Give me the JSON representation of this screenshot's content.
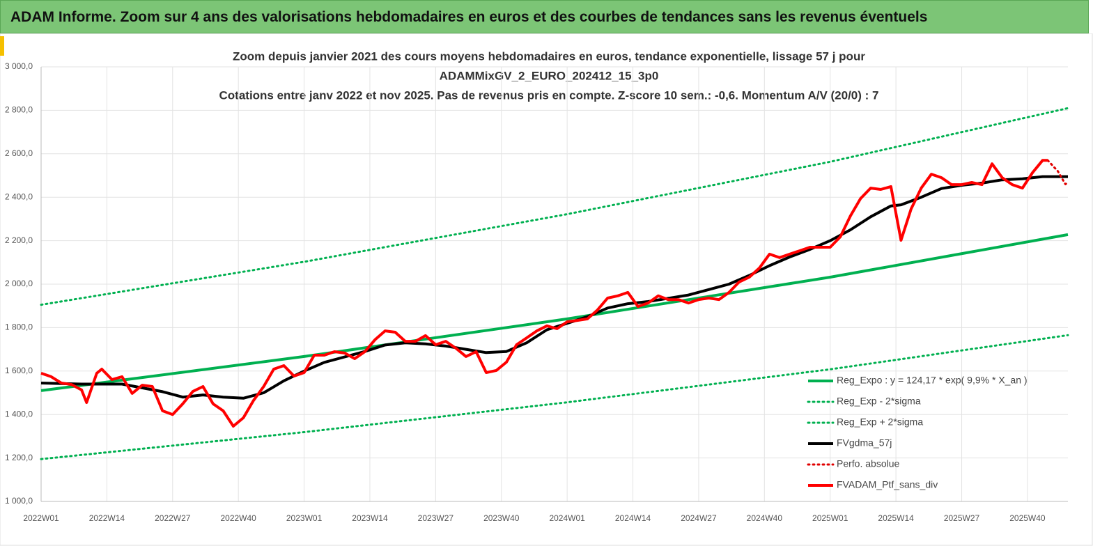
{
  "header": {
    "title": "ADAM Informe. Zoom sur 4 ans des valorisations hebdomadaires en euros et des courbes de tendances sans les revenus éventuels"
  },
  "chart_data": {
    "type": "line",
    "title": [
      "Zoom depuis janvier 2021 des cours moyens hebdomadaires  en euros, tendance exponentielle, lissage 57 j pour",
      "ADAMMixGV_2_EURO_202412_15_3p0",
      "Cotations  entre janv 2022 et nov 2025. Pas de revenus pris en compte. Z-score 10 sem.: -0,6. Momentum A/V (20/0) : 7"
    ],
    "xlim": [
      0,
      203
    ],
    "xticks": [
      {
        "value": 0,
        "label": "2022W01"
      },
      {
        "value": 13,
        "label": "2022W14"
      },
      {
        "value": 26,
        "label": "2022W27"
      },
      {
        "value": 39,
        "label": "2022W40"
      },
      {
        "value": 52,
        "label": "2023W01"
      },
      {
        "value": 65,
        "label": "2023W14"
      },
      {
        "value": 78,
        "label": "2023W27"
      },
      {
        "value": 91,
        "label": "2023W40"
      },
      {
        "value": 104,
        "label": "2024W01"
      },
      {
        "value": 117,
        "label": "2024W14"
      },
      {
        "value": 130,
        "label": "2024W27"
      },
      {
        "value": 143,
        "label": "2024W40"
      },
      {
        "value": 156,
        "label": "2025W01"
      },
      {
        "value": 169,
        "label": "2025W14"
      },
      {
        "value": 182,
        "label": "2025W27"
      },
      {
        "value": 195,
        "label": "2025W40"
      }
    ],
    "ylim": [
      1000,
      3000
    ],
    "yticks": [
      {
        "value": 1000,
        "label": "1 000,0"
      },
      {
        "value": 1200,
        "label": "1 200,0"
      },
      {
        "value": 1400,
        "label": "1 400,0"
      },
      {
        "value": 1600,
        "label": "1 600,0"
      },
      {
        "value": 1800,
        "label": "1 800,0"
      },
      {
        "value": 2000,
        "label": "2 000,0"
      },
      {
        "value": 2200,
        "label": "2 200,0"
      },
      {
        "value": 2400,
        "label": "2 400,0"
      },
      {
        "value": 2600,
        "label": "2 600,0"
      },
      {
        "value": 2800,
        "label": "2 800,0"
      },
      {
        "value": 3000,
        "label": "3 000,0"
      }
    ],
    "grid": true,
    "legend": "bottom-right",
    "series": [
      {
        "name": "Reg_Expo : y = 124,17 * exp( 9,9% *  X_an )",
        "color": "#00b050",
        "style": "solid",
        "width": 4,
        "x": [
          0,
          52,
          104,
          156,
          203
        ],
        "values": [
          1510,
          1667,
          1840,
          2032,
          2228
        ]
      },
      {
        "name": "Reg_Exp - 2*sigma",
        "color": "#00b050",
        "style": "dotted",
        "width": 3,
        "x": [
          0,
          52,
          104,
          156,
          203
        ],
        "values": [
          1195,
          1319,
          1456,
          1608,
          1765
        ]
      },
      {
        "name": "Reg_Exp + 2*sigma",
        "color": "#00b050",
        "style": "dotted",
        "width": 3,
        "x": [
          0,
          52,
          104,
          156,
          203
        ],
        "values": [
          1905,
          2103,
          2322,
          2563,
          2810
        ]
      },
      {
        "name": "FVgdma_57j",
        "color": "#000000",
        "style": "solid",
        "width": 4,
        "x": [
          0,
          8,
          16,
          24,
          28,
          32,
          36,
          40,
          44,
          48,
          52,
          56,
          60,
          64,
          68,
          72,
          76,
          80,
          84,
          88,
          92,
          96,
          100,
          104,
          108,
          112,
          116,
          120,
          124,
          128,
          132,
          136,
          140,
          144,
          148,
          152,
          156,
          160,
          164,
          168,
          170,
          174,
          178,
          182,
          186,
          190,
          194,
          198,
          203
        ],
        "values": [
          1545,
          1540,
          1540,
          1505,
          1480,
          1490,
          1480,
          1475,
          1500,
          1555,
          1600,
          1640,
          1665,
          1690,
          1720,
          1730,
          1725,
          1715,
          1700,
          1685,
          1690,
          1730,
          1790,
          1820,
          1850,
          1890,
          1910,
          1920,
          1935,
          1950,
          1975,
          2000,
          2040,
          2085,
          2125,
          2160,
          2200,
          2250,
          2310,
          2360,
          2365,
          2400,
          2440,
          2455,
          2465,
          2480,
          2485,
          2495,
          2495
        ]
      },
      {
        "name": "Perfo. absolue",
        "color": "#e00000",
        "style": "dotted",
        "width": 3,
        "x": [
          199,
          201,
          202.5,
          203
        ],
        "values": [
          2570,
          2520,
          2460,
          2468
        ]
      },
      {
        "name": "FVADAM_Ptf_sans_div",
        "color": "#ff0000",
        "style": "solid",
        "width": 4,
        "x": [
          0,
          2,
          4,
          6,
          8,
          9,
          11,
          12,
          14,
          16,
          18,
          20,
          22,
          24,
          26,
          28,
          30,
          32,
          34,
          36,
          38,
          40,
          42,
          44,
          46,
          48,
          50,
          52,
          54,
          56,
          58,
          60,
          62,
          64,
          66,
          68,
          70,
          72,
          74,
          76,
          78,
          80,
          82,
          84,
          86,
          88,
          90,
          92,
          94,
          96,
          98,
          100,
          102,
          104,
          106,
          108,
          110,
          112,
          114,
          116,
          118,
          120,
          122,
          124,
          126,
          128,
          130,
          132,
          134,
          136,
          138,
          140,
          142,
          144,
          146,
          148,
          150,
          152,
          154,
          156,
          158,
          160,
          162,
          164,
          166,
          168,
          170,
          172,
          174,
          176,
          178,
          180,
          182,
          184,
          186,
          188,
          190,
          192,
          194,
          196,
          198,
          199
        ],
        "values": [
          1590,
          1574,
          1545,
          1538,
          1513,
          1455,
          1590,
          1609,
          1561,
          1574,
          1497,
          1535,
          1529,
          1417,
          1400,
          1449,
          1506,
          1529,
          1449,
          1417,
          1346,
          1385,
          1465,
          1529,
          1609,
          1625,
          1577,
          1593,
          1673,
          1673,
          1689,
          1683,
          1657,
          1689,
          1744,
          1785,
          1779,
          1737,
          1737,
          1763,
          1721,
          1737,
          1705,
          1667,
          1689,
          1593,
          1603,
          1641,
          1721,
          1753,
          1785,
          1808,
          1795,
          1827,
          1833,
          1840,
          1881,
          1936,
          1946,
          1962,
          1897,
          1913,
          1946,
          1929,
          1929,
          1913,
          1929,
          1936,
          1929,
          1962,
          2010,
          2032,
          2074,
          2138,
          2122,
          2138,
          2154,
          2170,
          2170,
          2170,
          2218,
          2314,
          2394,
          2442,
          2436,
          2449,
          2202,
          2346,
          2442,
          2506,
          2490,
          2458,
          2458,
          2468,
          2458,
          2554,
          2490,
          2458,
          2442,
          2513,
          2570,
          2570
        ]
      }
    ]
  }
}
